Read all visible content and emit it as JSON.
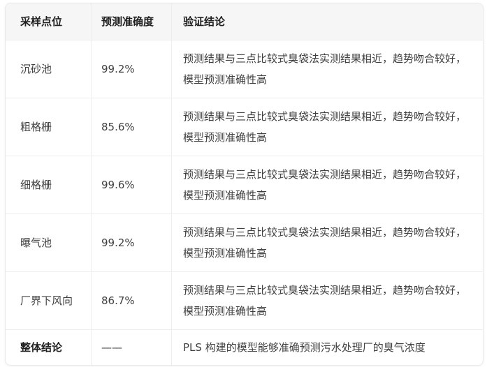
{
  "table": {
    "columns": [
      {
        "label": "采样点位"
      },
      {
        "label": "预测准确度"
      },
      {
        "label": "验证结论"
      }
    ],
    "rows": [
      {
        "point": "沉砂池",
        "accuracy": "99.2%",
        "conclusion": "预测结果与三点比较式臭袋法实测结果相近，趋势吻合较好，模型预测准确性高"
      },
      {
        "point": "粗格栅",
        "accuracy": "85.6%",
        "conclusion": "预测结果与三点比较式臭袋法实测结果相近，趋势吻合较好，模型预测准确性高"
      },
      {
        "point": "细格栅",
        "accuracy": "99.6%",
        "conclusion": "预测结果与三点比较式臭袋法实测结果相近，趋势吻合较好，模型预测准确性高"
      },
      {
        "point": "曝气池",
        "accuracy": "99.2%",
        "conclusion": "预测结果与三点比较式臭袋法实测结果相近，趋势吻合较好，模型预测准确性高"
      },
      {
        "point": "厂界下风向",
        "accuracy": "86.7%",
        "conclusion": "预测结果与三点比较式臭袋法实测结果相近，趋势吻合较好，模型预测准确性高"
      }
    ],
    "summary_row": {
      "point": "整体结论",
      "accuracy": "——",
      "conclusion": "PLS 构建的模型能够准确预测污水处理厂的臭气浓度"
    },
    "colors": {
      "header_bg": "#f6f6f7",
      "border": "#e9e9e9",
      "divider": "#ededed",
      "header_text": "#1f1f1f",
      "body_text": "#404040"
    }
  }
}
